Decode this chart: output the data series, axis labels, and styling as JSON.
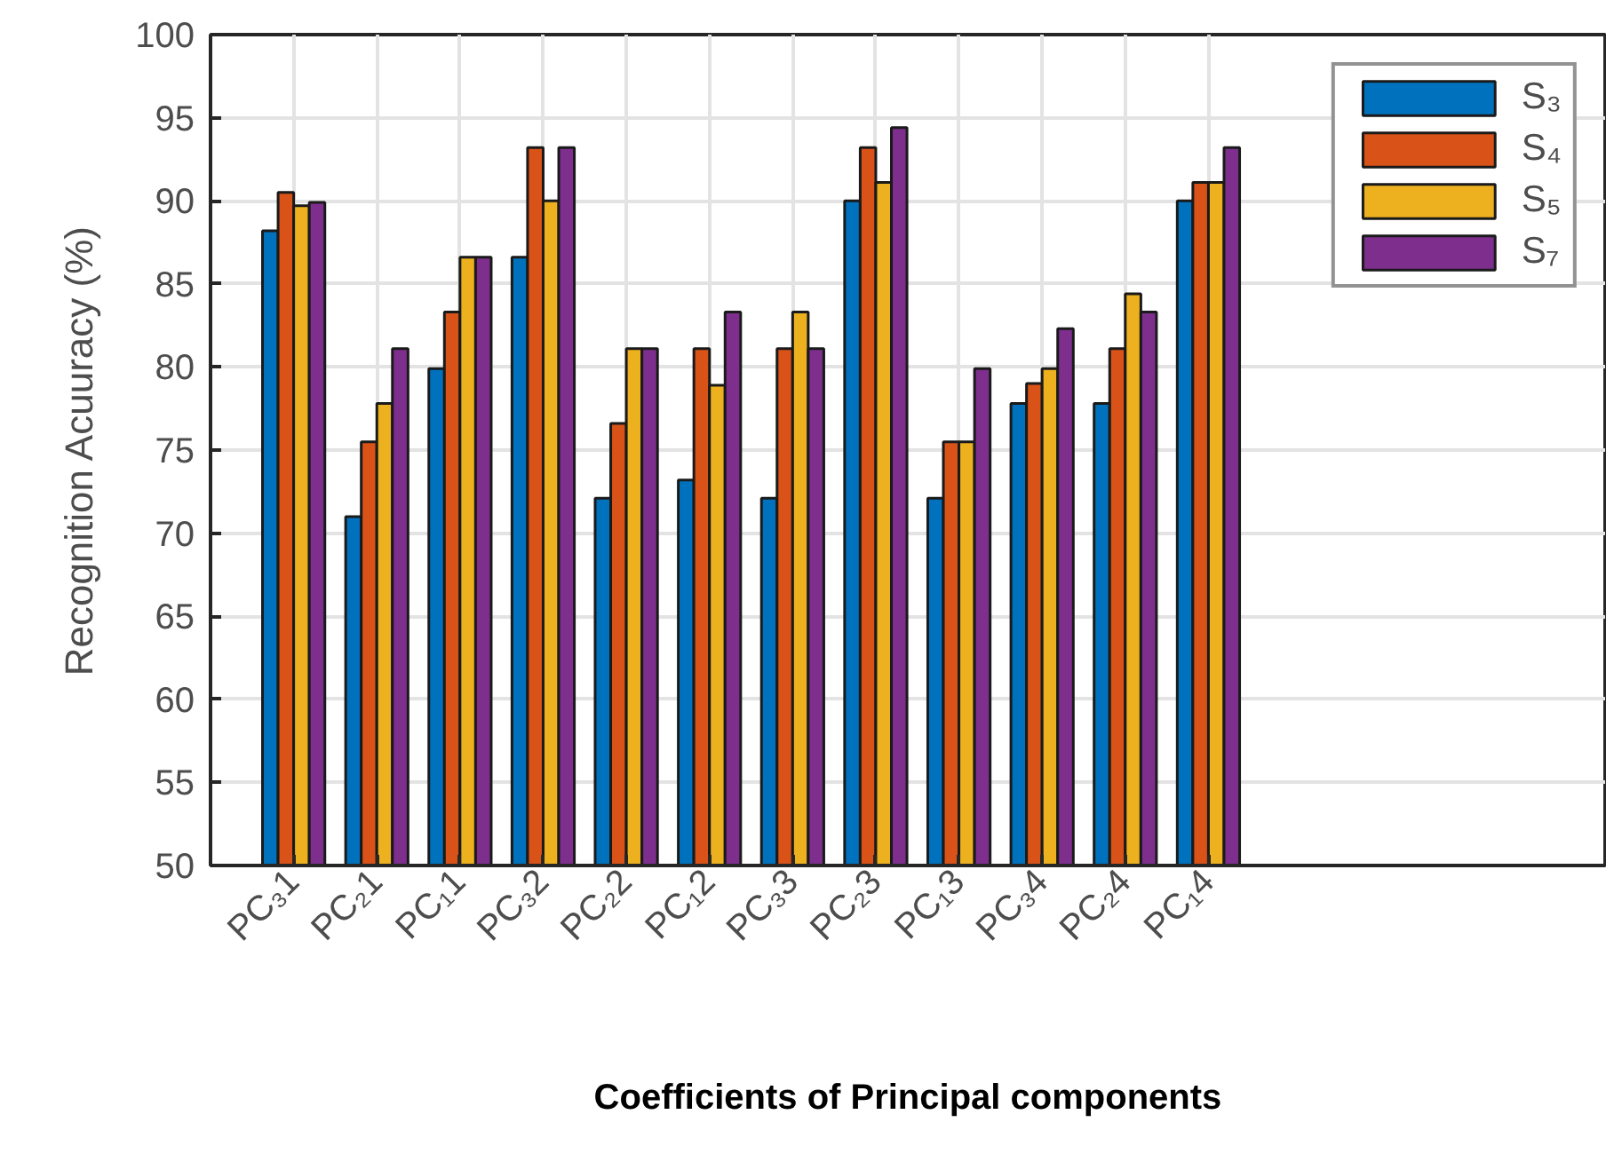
{
  "chart_data": {
    "type": "bar",
    "xlabel": "Coefficients of Principal components",
    "ylabel": "Recognition Acuuracy (%)",
    "categories": [
      "PC₃1",
      "PC₂1",
      "PC₁1",
      "PC₃2",
      "PC₂2",
      "PC₁2",
      "PC₃3",
      "PC₂3",
      "PC₁3",
      "PC₃4",
      "PC₂4",
      "PC₁4"
    ],
    "series": [
      {
        "name": "S₃",
        "color": "#0072bd",
        "values": [
          88.2,
          71.0,
          79.9,
          86.6,
          72.1,
          73.2,
          72.1,
          90.0,
          72.1,
          77.8,
          77.8,
          90.0
        ]
      },
      {
        "name": "S₄",
        "color": "#d95319",
        "values": [
          90.5,
          75.5,
          83.3,
          93.2,
          76.6,
          81.1,
          81.1,
          93.2,
          75.5,
          79.0,
          81.1,
          91.1
        ]
      },
      {
        "name": "S₅",
        "color": "#edb120",
        "values": [
          89.7,
          77.8,
          86.6,
          90.0,
          81.1,
          78.9,
          83.3,
          91.1,
          75.5,
          79.9,
          84.4,
          91.1
        ]
      },
      {
        "name": "S₇",
        "color": "#7e2f8e",
        "values": [
          89.9,
          81.1,
          86.6,
          93.2,
          81.1,
          83.3,
          81.1,
          94.4,
          79.9,
          82.3,
          83.3,
          93.2
        ]
      }
    ],
    "ylim": [
      50,
      100
    ],
    "yticks": [
      50,
      55,
      60,
      65,
      70,
      75,
      80,
      85,
      90,
      95,
      100
    ],
    "grid": true,
    "legend": "top right"
  }
}
